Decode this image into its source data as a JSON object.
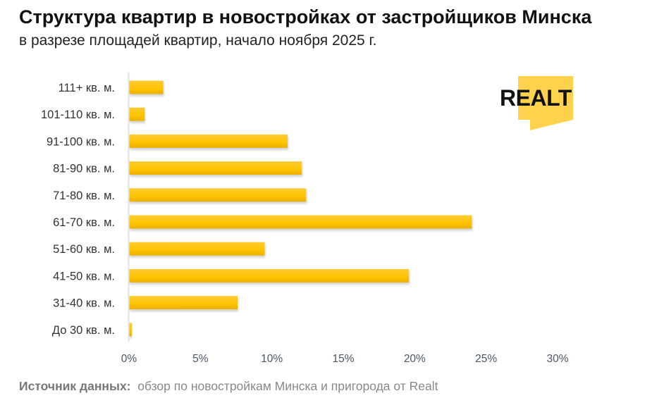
{
  "header": {
    "title": "Структура квартир в новостройках от застройщиков Минска",
    "subtitle": "в разрезе площадей квартир, начало ноября 2025 г."
  },
  "footer": {
    "source_label": "Источник данных:",
    "source_text": "обзор по новостройкам Минска и пригорода от Realt"
  },
  "logo": {
    "text": "REALT",
    "bg_color": "#FFD24D",
    "text_color": "#111111"
  },
  "chart_data": {
    "type": "bar",
    "orientation": "horizontal",
    "categories": [
      "111+ кв. м.",
      "101-110 кв. м.",
      "91-100 кв. м.",
      "81-90 кв. м.",
      "71-80 кв. м.",
      "61-70 кв. м.",
      "51-60 кв. м.",
      "41-50 кв. м.",
      "31-40 кв. м.",
      "До 30 кв. м."
    ],
    "values": [
      2.4,
      1.1,
      11.1,
      12.1,
      12.4,
      24.0,
      9.5,
      19.6,
      7.6,
      0.2
    ],
    "unit": "%",
    "xlim": [
      0,
      30
    ],
    "xticks": [
      "0%",
      "5%",
      "10%",
      "15%",
      "20%",
      "25%",
      "30%"
    ],
    "grid": false,
    "bar_color": "#FFC300"
  }
}
